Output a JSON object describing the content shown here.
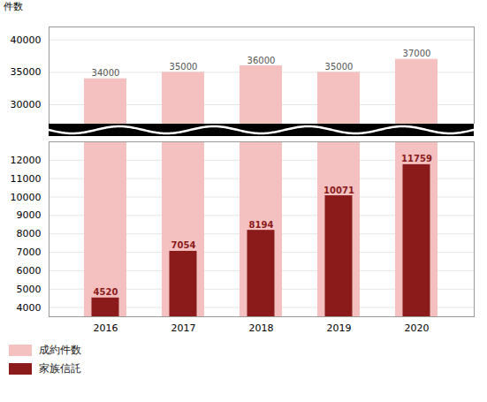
{
  "chart_data": [
    {
      "type": "bar",
      "ylabel": "件数",
      "categories": [
        "2016",
        "2017",
        "2018",
        "2019",
        "2020"
      ],
      "series": [
        {
          "name": "成約件数",
          "color": "#f5c0c0",
          "values": [
            34000,
            35000,
            36000,
            35000,
            37000
          ],
          "data_labels": true
        }
      ],
      "ylim": [
        27000,
        42000
      ],
      "yticks": [
        30000,
        35000,
        40000
      ],
      "grid": true,
      "tick_labels": "y"
    },
    {
      "type": "bar",
      "categories": [
        "2016",
        "2017",
        "2018",
        "2019",
        "2020"
      ],
      "series": [
        {
          "name": "家族信託",
          "color": "#8b1a1a",
          "values": [
            4520,
            7054,
            8194,
            10071,
            11759
          ],
          "data_labels": true
        }
      ],
      "ylim": [
        3500,
        13000
      ],
      "yticks": [
        4000,
        5000,
        6000,
        7000,
        8000,
        9000,
        10000,
        11000,
        12000
      ],
      "grid": true,
      "legend": "lower left"
    }
  ]
}
